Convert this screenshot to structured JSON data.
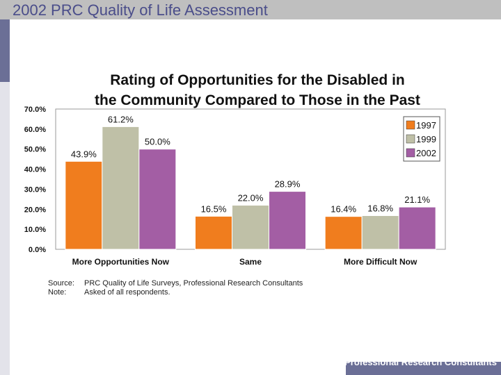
{
  "header": {
    "title": "2002 PRC Quality of Life Assessment"
  },
  "chart_data": {
    "type": "bar",
    "title": "Rating of Opportunities for the Disabled in the Community Compared to Those in the Past",
    "title_lines": [
      "Rating of Opportunities for the Disabled in",
      "the Community Compared to Those in the Past"
    ],
    "categories": [
      "More Opportunities Now",
      "Same",
      "More Difficult Now"
    ],
    "series": [
      {
        "name": "1997",
        "color": "#f07d1e",
        "values": [
          43.9,
          16.5,
          16.4
        ],
        "labels": [
          "43.9%",
          "16.5%",
          "16.4%"
        ]
      },
      {
        "name": "1999",
        "color": "#bfc0a7",
        "values": [
          61.2,
          22.0,
          16.8
        ],
        "labels": [
          "61.2%",
          "22.0%",
          "16.8%"
        ]
      },
      {
        "name": "2002",
        "color": "#a35ea4",
        "values": [
          50.0,
          28.9,
          21.1
        ],
        "labels": [
          "50.0%",
          "28.9%",
          "21.1%"
        ]
      }
    ],
    "ylim": [
      0,
      70
    ],
    "yticks": [
      0,
      10,
      20,
      30,
      40,
      50,
      60,
      70
    ],
    "ytick_labels": [
      "0.0%",
      "10.0%",
      "20.0%",
      "30.0%",
      "40.0%",
      "50.0%",
      "60.0%",
      "70.0%"
    ],
    "xlabel": "",
    "ylabel": "",
    "legend_position": "top-right",
    "grid": false
  },
  "notes": {
    "source_label": "Source:",
    "source_text": "PRC Quality of Life Surveys, Professional Research Consultants",
    "note_label": "Note:",
    "note_text": "Asked of all respondents."
  },
  "footer": {
    "text": "Professional Research Consultants"
  }
}
